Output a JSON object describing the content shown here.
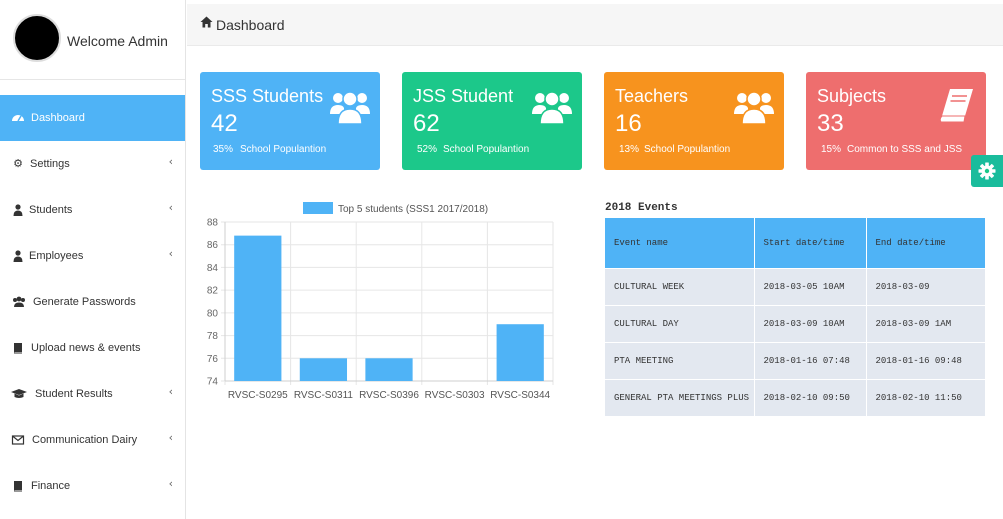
{
  "sidebar": {
    "welcome": "Welcome Admin",
    "items": [
      {
        "label": "Dashboard",
        "icon": "dashboard-icon",
        "active": true,
        "chevron": false
      },
      {
        "label": "Settings",
        "icon": "gear-icon",
        "active": false,
        "chevron": true
      },
      {
        "label": "Students",
        "icon": "user-icon",
        "active": false,
        "chevron": true
      },
      {
        "label": "Employees",
        "icon": "user-icon",
        "active": false,
        "chevron": true
      },
      {
        "label": "Generate Passwords",
        "icon": "users-icon",
        "active": false,
        "chevron": false
      },
      {
        "label": "Upload news & events",
        "icon": "book-icon",
        "active": false,
        "chevron": false
      },
      {
        "label": "Student Results",
        "icon": "graduation-cap-icon",
        "active": false,
        "chevron": true
      },
      {
        "label": "Communication Dairy",
        "icon": "envelope-icon",
        "active": false,
        "chevron": true
      },
      {
        "label": "Finance",
        "icon": "book-icon",
        "active": false,
        "chevron": true
      }
    ]
  },
  "header": {
    "title": "Dashboard",
    "icon": "home-icon"
  },
  "stats": [
    {
      "title": "SSS Students",
      "value": "42",
      "pct": "35%",
      "desc": "School Populantion",
      "color": "#4fb3f6",
      "icon": "users-icon"
    },
    {
      "title": "JSS Student",
      "value": "62",
      "pct": "52%",
      "desc": "School Populantion",
      "color": "#1cc88a",
      "icon": "users-icon"
    },
    {
      "title": "Teachers",
      "value": "16",
      "pct": "13%",
      "desc": "School Populantion",
      "color": "#f7931e",
      "icon": "users-icon"
    },
    {
      "title": "Subjects",
      "value": "33",
      "pct": "15%",
      "desc": "Common to SSS and JSS",
      "color": "#ee6e6e",
      "icon": "book-icon"
    }
  ],
  "chart_data": {
    "type": "bar",
    "categories": [
      "RVSC-S0295",
      "RVSC-S0311",
      "RVSC-S0396",
      "RVSC-S0303",
      "RVSC-S0344"
    ],
    "series": [
      {
        "name": "Top 5 students (SSS1 2017/2018)",
        "values": [
          86.8,
          76,
          76,
          74,
          79
        ]
      }
    ],
    "ylim": [
      74,
      88
    ],
    "yticks": [
      74,
      76,
      78,
      80,
      82,
      84,
      86,
      88
    ],
    "legend": "top",
    "grid": true,
    "color": "#4fb3f6"
  },
  "events": {
    "title": "2018 Events",
    "columns": [
      "Event name",
      "Start date/time",
      "End date/time"
    ],
    "rows": [
      [
        "CULTURAL WEEK",
        "2018-03-05 10AM",
        "2018-03-09"
      ],
      [
        "CULTURAL DAY",
        "2018-03-09 10AM",
        "2018-03-09 1AM"
      ],
      [
        "PTA MEETING",
        "2018-01-16 07:48",
        "2018-01-16 09:48"
      ],
      [
        "GENERAL PTA MEETINGS PLUS",
        "2018-02-10 09:50",
        "2018-02-10 11:50"
      ]
    ]
  }
}
